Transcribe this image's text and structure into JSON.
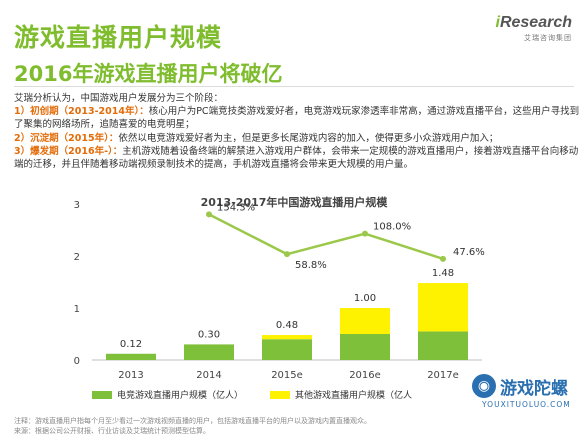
{
  "header": {
    "title": "游戏直播用户规模",
    "subtitle": "2016年游戏直播用户将破亿"
  },
  "logo": {
    "brand_i": "i",
    "brand_rest": "Research",
    "sub": "艾瑞咨询集团"
  },
  "description": {
    "intro": "艾瑞分析认为，中国游戏用户发展分为三个阶段：",
    "stages": [
      {
        "num": "1）",
        "label": "初创期（2013-2014年）：",
        "text": "核心用户为PC端竞技类游戏爱好者，电竞游戏玩家渗透率非常高，通过游戏直播平台，这些用户寻找到了聚集的网络场所，追随喜爱的电竞明星；"
      },
      {
        "num": "2）",
        "label": "沉淀期（2015年）：",
        "text": "依然以电竞游戏爱好者为主，但是更多长尾游戏内容的加入，使得更多小众游戏用户加入；"
      },
      {
        "num": "3）",
        "label": "爆发期（2016年-）：",
        "text": "主机游戏随着设备终端的解禁进入游戏用户群体，会带来一定规模的游戏直播用户，接着游戏直播平台向移动端的迁移，并且伴随着移动端视频录制技术的提高，手机游戏直播将会带来更大规模的用户量。"
      }
    ]
  },
  "chart_data": {
    "type": "bar",
    "title": "2013-2017年中国游戏直播用户规模",
    "categories": [
      "2013",
      "2014",
      "2015e",
      "2016e",
      "2017e"
    ],
    "series": [
      {
        "name": "电竞游戏直播用户规模（亿人）",
        "values": [
          0.12,
          0.3,
          0.4,
          0.5,
          0.55
        ],
        "color": "#7fc03a"
      },
      {
        "name": "其他游戏直播用户规模（亿人）",
        "values": [
          0,
          0,
          0.08,
          0.5,
          0.93
        ],
        "color": "#fff200"
      }
    ],
    "totals": [
      "0.12",
      "0.30",
      "0.48",
      "1.00",
      "1.48"
    ],
    "growth_rate": {
      "name": "增长率",
      "categories": [
        "2014",
        "2015e",
        "2016e",
        "2017e"
      ],
      "values": [
        154.3,
        58.8,
        108.0,
        47.6
      ],
      "labels": [
        "154.3%",
        "58.8%",
        "108.0%",
        "47.6%"
      ],
      "color": "#9bc84a"
    },
    "yticks": [
      "0",
      "1",
      "2",
      "3"
    ],
    "ylim": [
      0,
      3
    ],
    "growth_ylim": [
      0,
      180
    ]
  },
  "legend": {
    "items": [
      {
        "label": "电竞游戏直播用户规模（亿人）",
        "color": "#7fc03a"
      },
      {
        "label": "其他游戏直播用户规模（亿人",
        "color": "#fff200"
      }
    ]
  },
  "footnote": {
    "line1": "注释：游戏直播用户指每个月至少看过一次游戏视频直播的用户，包括游戏直播平台的用户以及游戏内置直播观众。",
    "line2": "来源：根据公司公开财报、行业访谈及艾瑞统计预测模型估算。"
  },
  "watermark": {
    "text": "游戏陀螺",
    "url": "YOUXITUOLUO.COM",
    "icon": "spinning-top-icon"
  }
}
